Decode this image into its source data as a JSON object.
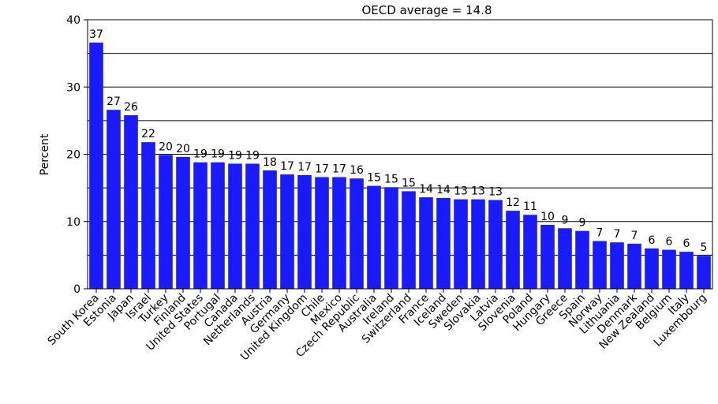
{
  "chart_data": {
    "type": "bar",
    "title": "OECD average = 14.8",
    "ylabel": "Percent",
    "xlabel": "",
    "ylim": [
      0,
      40
    ],
    "yticks": [
      0,
      10,
      20,
      30,
      40
    ],
    "grid": "horizontal",
    "bar_color": "#1a1aff",
    "categories": [
      "South Korea",
      "Estonia",
      "Japan",
      "Israel",
      "Turkey",
      "Finland",
      "United States",
      "Portugal",
      "Canada",
      "Netherlands",
      "Austria",
      "Germany",
      "United Kingdom",
      "Chile",
      "Mexico",
      "Czech Republic",
      "Australia",
      "Ireland",
      "Switzerland",
      "France",
      "Iceland",
      "Sweden",
      "Slovakia",
      "Latvia",
      "Slovenia",
      "Poland",
      "Hungary",
      "Greece",
      "Spain",
      "Norway",
      "Lithuania",
      "Denmark",
      "New Zealand",
      "Belgium",
      "Italy",
      "Luxembourg"
    ],
    "values": [
      36.6,
      26.6,
      25.8,
      21.8,
      19.9,
      19.6,
      18.8,
      18.8,
      18.6,
      18.6,
      17.6,
      17.0,
      16.9,
      16.6,
      16.6,
      16.4,
      15.3,
      15.1,
      14.5,
      13.6,
      13.5,
      13.3,
      13.3,
      13.2,
      11.6,
      11.0,
      9.5,
      9.0,
      8.6,
      7.1,
      6.9,
      6.7,
      6.0,
      5.8,
      5.5,
      4.9
    ],
    "labels": [
      "37",
      "27",
      "26",
      "22",
      "20",
      "20",
      "19",
      "19",
      "19",
      "19",
      "18",
      "17",
      "17",
      "17",
      "17",
      "16",
      "15",
      "15",
      "15",
      "14",
      "14",
      "13",
      "13",
      "13",
      "12",
      "11",
      "10",
      "9",
      "9",
      "7",
      "7",
      "7",
      "6",
      "6",
      "6",
      "5"
    ]
  }
}
